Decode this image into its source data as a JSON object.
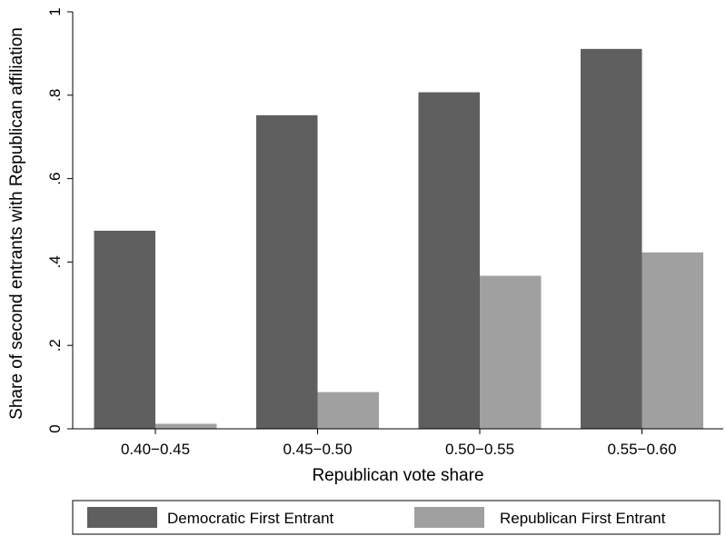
{
  "colors": {
    "background": "#ffffff",
    "democratic": "#5f5f5f",
    "republican": "#a0a0a0",
    "axis": "#000000"
  },
  "chart_data": {
    "type": "bar",
    "title": "",
    "xlabel": "Republican vote share",
    "ylabel": "Share of second entrants with Republican affiliation",
    "categories": [
      "0.40−0.45",
      "0.45−0.50",
      "0.50−0.55",
      "0.55−0.60"
    ],
    "series": [
      {
        "name": "Democratic First Entrant",
        "values": [
          0.475,
          0.752,
          0.807,
          0.911
        ]
      },
      {
        "name": "Republican First Entrant",
        "values": [
          0.012,
          0.088,
          0.367,
          0.423
        ]
      }
    ],
    "ylim": [
      0,
      1
    ],
    "yticks": [
      0,
      0.2,
      0.4,
      0.6,
      0.8,
      1
    ],
    "ytick_labels": [
      "0",
      ".2",
      ".4",
      ".6",
      ".8",
      "1"
    ],
    "grid": false,
    "legend_position": "bottom"
  }
}
